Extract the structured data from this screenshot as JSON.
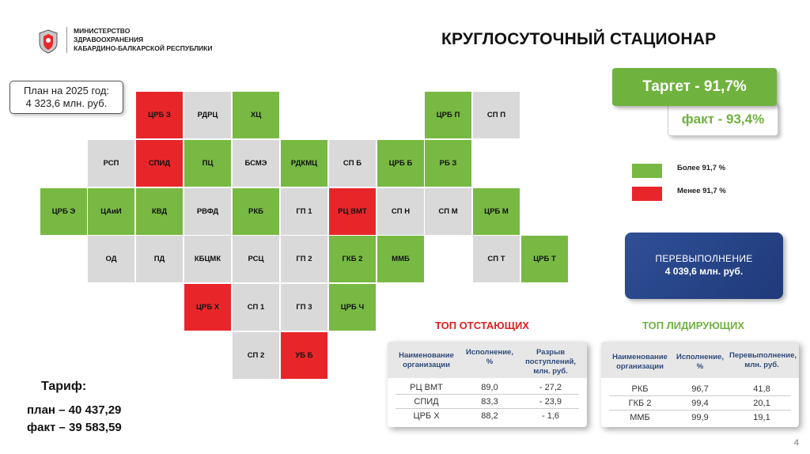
{
  "header": {
    "ministry_lines": [
      "МИНИСТЕРСТВО",
      "ЗДРАВООХРАНЕНИЯ",
      "КАБАРДИНО-БАЛКАРСКОЙ РЕСПУБЛИКИ"
    ],
    "title": "КРУГЛОСУТОЧНЫЙ СТАЦИОНАР"
  },
  "plan": {
    "line1": "План на 2025 год:",
    "line2": "4 323,6 млн. руб."
  },
  "target": {
    "label": "Таргет  -  91,7%"
  },
  "fact": {
    "label": "факт  -  93,4%"
  },
  "legend": {
    "above": {
      "label": "Более 91,7 %",
      "color": "#77b942"
    },
    "below": {
      "label": "Менее 91,7 %",
      "color": "#e8262a"
    }
  },
  "overfulfillment": {
    "title": "ПЕРЕВЫПОЛНЕНИЕ",
    "value": "4 039,6 млн. руб."
  },
  "map_cells": [
    {
      "label": "ЦРБ З",
      "status": "red"
    },
    {
      "label": "РДРЦ",
      "status": "neutral"
    },
    {
      "label": "ХЦ",
      "status": "green"
    },
    {
      "label": "ЦРБ П",
      "status": "green"
    },
    {
      "label": "СП П",
      "status": "neutral"
    },
    {
      "label": "РСП",
      "status": "neutral"
    },
    {
      "label": "СПИД",
      "status": "red"
    },
    {
      "label": "ПЦ",
      "status": "green"
    },
    {
      "label": "БСМЭ",
      "status": "neutral"
    },
    {
      "label": "РДКМЦ",
      "status": "green"
    },
    {
      "label": "СП Б",
      "status": "neutral"
    },
    {
      "label": "ЦРБ Б",
      "status": "green"
    },
    {
      "label": "РБ З",
      "status": "green"
    },
    {
      "label": "ЦРБ Э",
      "status": "green"
    },
    {
      "label": "ЦАиИ",
      "status": "green"
    },
    {
      "label": "КВД",
      "status": "green"
    },
    {
      "label": "РВФД",
      "status": "neutral"
    },
    {
      "label": "РКБ",
      "status": "green"
    },
    {
      "label": "ГП 1",
      "status": "neutral"
    },
    {
      "label": "РЦ ВМТ",
      "status": "red"
    },
    {
      "label": "СП Н",
      "status": "neutral"
    },
    {
      "label": "СП М",
      "status": "neutral"
    },
    {
      "label": "ЦРБ М",
      "status": "green"
    },
    {
      "label": "ОД",
      "status": "neutral"
    },
    {
      "label": "ПД",
      "status": "neutral"
    },
    {
      "label": "КБЦМК",
      "status": "neutral"
    },
    {
      "label": "РСЦ",
      "status": "neutral"
    },
    {
      "label": "ГП 2",
      "status": "neutral"
    },
    {
      "label": "ГКБ 2",
      "status": "green"
    },
    {
      "label": "ММБ",
      "status": "green"
    },
    {
      "label": "СП Т",
      "status": "neutral"
    },
    {
      "label": "ЦРБ Т",
      "status": "green"
    },
    {
      "label": "ЦРБ Х",
      "status": "red"
    },
    {
      "label": "СП 1",
      "status": "neutral"
    },
    {
      "label": "ГП 3",
      "status": "neutral"
    },
    {
      "label": "ЦРБ Ч",
      "status": "green"
    },
    {
      "label": "СП 2",
      "status": "neutral"
    },
    {
      "label": "УБ Б",
      "status": "red"
    }
  ],
  "colors": {
    "green": "#77b942",
    "red": "#e8262a",
    "neutral": "#d9d9d9",
    "lag_title": "#e02020",
    "lead_title": "#6fb23e"
  },
  "lagging": {
    "title": "ТОП ОТСТАЮЩИХ",
    "headers": [
      "Наименование организации",
      "Исполнение, %",
      "Разрыв поступлений, млн. руб."
    ],
    "rows": [
      [
        "РЦ ВМТ",
        "89,0",
        "- 27,2"
      ],
      [
        "СПИД",
        "83,3",
        "- 23,9"
      ],
      [
        "ЦРБ Х",
        "88,2",
        "- 1,6"
      ]
    ]
  },
  "leading": {
    "title": "ТОП ЛИДИРУЮЩИХ",
    "headers": [
      "Наименование организации",
      "Исполнение, %",
      "Перевыполнение, млн. руб."
    ],
    "rows": [
      [
        "РКБ",
        "96,7",
        "41,8"
      ],
      [
        "ГКБ 2",
        "99,4",
        "20,1"
      ],
      [
        "ММБ",
        "99,9",
        "19,1"
      ]
    ]
  },
  "tariff": {
    "title": "Тариф:",
    "plan": "план – 40 437,29",
    "fact": "факт – 39 583,59"
  },
  "page_number": "4"
}
